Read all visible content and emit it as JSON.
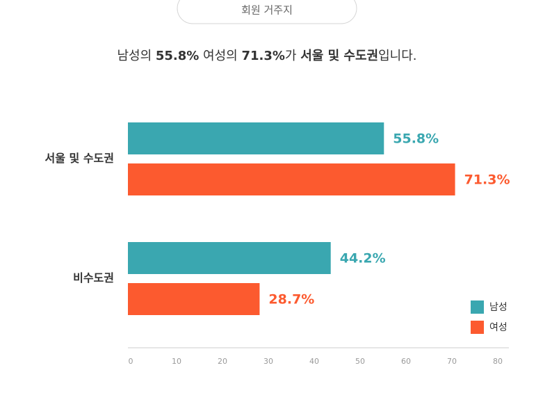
{
  "tab": "회원 거주지",
  "chart_data": {
    "type": "barh",
    "subtitle_parts": [
      {
        "text": "남성의 ",
        "bold": false
      },
      {
        "text": "55.8%",
        "bold": true
      },
      {
        "text": " 여성의 ",
        "bold": false
      },
      {
        "text": "71.3%",
        "bold": true
      },
      {
        "text": "가 ",
        "bold": false
      },
      {
        "text": "서울 및 수도권",
        "bold": true
      },
      {
        "text": "입니다.",
        "bold": false
      }
    ],
    "categories": [
      "서울 및 수도권",
      "비수도권"
    ],
    "series": [
      {
        "name": "남성",
        "color": "#3aa7b0",
        "values": [
          55.8,
          44.2
        ],
        "value_labels": [
          "55.8%",
          "44.2%"
        ]
      },
      {
        "name": "여성",
        "color": "#fc5a2f",
        "values": [
          71.3,
          28.7
        ],
        "value_labels": [
          "71.3%",
          "28.7%"
        ]
      }
    ],
    "xlim": [
      0,
      80
    ],
    "xticks": [
      0,
      10,
      20,
      30,
      40,
      50,
      60,
      70,
      80
    ],
    "legend": "lower right"
  }
}
